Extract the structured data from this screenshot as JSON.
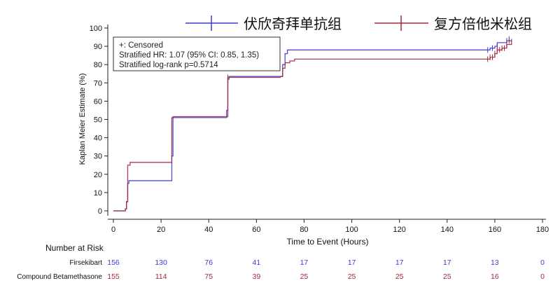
{
  "chart_data": {
    "type": "line",
    "step": true,
    "xlabel": "Time to Event (Hours)",
    "ylabel": "Kaplan Meier Estimate (%)",
    "xlim": [
      0,
      180
    ],
    "ylim": [
      0,
      100
    ],
    "xticks": [
      0,
      20,
      40,
      60,
      80,
      100,
      120,
      140,
      160,
      180
    ],
    "yticks": [
      0,
      10,
      20,
      30,
      40,
      50,
      60,
      70,
      80,
      90,
      100
    ],
    "grid": false,
    "legend_position": "top",
    "annotation": [
      "+: Censored",
      "Stratified HR: 1.07 (95% CI: 0.85, 1.35)",
      "Stratified log-rank p=0.5714"
    ],
    "series": [
      {
        "name": "伏欣奇拜单抗组",
        "color": "#3b3bd6",
        "points": [
          [
            0,
            0
          ],
          [
            3,
            0
          ],
          [
            5,
            1
          ],
          [
            5.5,
            5
          ],
          [
            6,
            15
          ],
          [
            6.5,
            16.5
          ],
          [
            24,
            16.5
          ],
          [
            24.5,
            30
          ],
          [
            25,
            51
          ],
          [
            47,
            51
          ],
          [
            47.5,
            55
          ],
          [
            48,
            72
          ],
          [
            48.5,
            73.5
          ],
          [
            70,
            73.5
          ],
          [
            71,
            80
          ],
          [
            72,
            86
          ],
          [
            73,
            88
          ],
          [
            156,
            88
          ],
          [
            158,
            89
          ],
          [
            160,
            90
          ],
          [
            161,
            92
          ],
          [
            165,
            93
          ],
          [
            167,
            94
          ]
        ],
        "censored": [
          [
            157,
            88
          ],
          [
            159,
            89
          ],
          [
            161,
            90
          ],
          [
            165,
            93
          ],
          [
            166,
            94
          ]
        ]
      },
      {
        "name": "复方倍他米松组",
        "color": "#a3293a",
        "points": [
          [
            0,
            0
          ],
          [
            5,
            1
          ],
          [
            5.5,
            5
          ],
          [
            6,
            25
          ],
          [
            7,
            26.5
          ],
          [
            24,
            26.5
          ],
          [
            24.5,
            51
          ],
          [
            25,
            51.5
          ],
          [
            47,
            51.5
          ],
          [
            48,
            73
          ],
          [
            70,
            73.5
          ],
          [
            71,
            78
          ],
          [
            72,
            81
          ],
          [
            74,
            82
          ],
          [
            76,
            83
          ],
          [
            156,
            83
          ],
          [
            158,
            84
          ],
          [
            160,
            86
          ],
          [
            161,
            88
          ],
          [
            163,
            89
          ],
          [
            165,
            91
          ],
          [
            167,
            93
          ]
        ],
        "censored": [
          [
            48,
            73
          ],
          [
            157,
            83
          ],
          [
            158,
            84
          ],
          [
            159,
            84
          ],
          [
            160,
            86
          ],
          [
            161,
            88
          ],
          [
            162,
            88
          ],
          [
            163,
            89
          ],
          [
            164,
            89
          ],
          [
            165,
            91
          ],
          [
            166,
            93
          ]
        ]
      }
    ],
    "risk_table": {
      "title": "Number at Risk",
      "times": [
        0,
        20,
        40,
        60,
        80,
        100,
        120,
        140,
        160,
        180
      ],
      "rows": [
        {
          "label": "Firsekibart",
          "color": "#3b3bd6",
          "values": [
            156,
            130,
            76,
            41,
            17,
            17,
            17,
            17,
            13,
            0
          ]
        },
        {
          "label": "Compound Betamethasone",
          "color": "#a3293a",
          "values": [
            155,
            114,
            75,
            39,
            25,
            25,
            25,
            25,
            16,
            0
          ]
        }
      ]
    }
  }
}
